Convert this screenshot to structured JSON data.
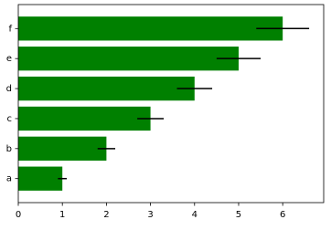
{
  "chart_data": {
    "type": "barh",
    "categories": [
      "a",
      "b",
      "c",
      "d",
      "e",
      "f"
    ],
    "values": [
      1,
      2,
      3,
      4,
      5,
      6
    ],
    "xerr": [
      0.1,
      0.2,
      0.3,
      0.4,
      0.5,
      0.6
    ],
    "color": "#008000",
    "xlim": [
      0,
      6.93
    ],
    "xticks": [
      0,
      1,
      2,
      3,
      4,
      5,
      6
    ]
  }
}
